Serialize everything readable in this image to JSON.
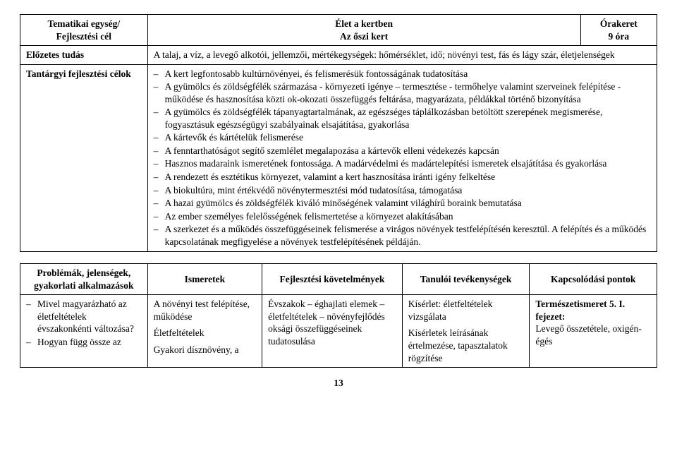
{
  "topTable": {
    "header": {
      "col1_line1": "Tematikai egység/",
      "col1_line2": "Fejlesztési cél",
      "col2_line1": "Élet a kertben",
      "col2_line2": "Az őszi kert",
      "col3_line1": "Órakeret",
      "col3_line2": "9 óra"
    },
    "row2": {
      "label": "Előzetes tudás",
      "content": "A talaj, a víz, a levegő alkotói, jellemzői, mértékegységek: hőmérséklet, idő; növényi test, fás és lágy szár, életjelenségek"
    },
    "row3": {
      "label": "Tantárgyi fejlesztési célok",
      "items": [
        "A kert legfontosabb kultúrnövényei, és felismerésük fontosságának tudatosítása",
        "A gyümölcs és zöldségfélék származása - környezeti igénye – termesztése - termőhelye valamint szerveinek felépítése - működése és hasznosítása közti ok-okozati összefüggés feltárása, magyarázata, példákkal történő bizonyítása",
        "A gyümölcs és zöldségfélék tápanyagtartalmának, az egészséges táplálkozásban betöltött szerepének megismerése, fogyasztásuk egészségügyi szabályainak elsajátítása, gyakorlása",
        "A kártevők és kártételük felismerése",
        "A fenntarthatóságot segítő szemlélet megalapozása a kártevők elleni védekezés kapcsán",
        "Hasznos madaraink ismeretének fontossága. A madárvédelmi és madártelepítési ismeretek elsajátítása és gyakorlása",
        "A rendezett és esztétikus környezet, valamint a kert hasznosítása iránti igény felkeltése",
        "A biokultúra, mint értékvédő növénytermesztési mód tudatosítása, támogatása",
        "A hazai gyümölcs és zöldségfélék kiváló minőségének valamint világhírű boraink bemutatása",
        "Az ember személyes felelősségének felismertetése a környezet alakításában",
        "A szerkezet és a működés összefüggéseinek felismerése a virágos növények testfelépítésén keresztül. A felépítés és a működés kapcsolatának megfigyelése a növények testfelépítésének példáján."
      ]
    }
  },
  "bottomTable": {
    "headers": {
      "c1_line1": "Problémák, jelenségek,",
      "c1_line2": "gyakorlati alkalmazások",
      "c2": "Ismeretek",
      "c3": "Fejlesztési követelmények",
      "c4": "Tanulói tevékenységek",
      "c5": "Kapcsolódási pontok"
    },
    "row": {
      "c1_items": [
        "Mivel magyarázható az életfeltételek évszakonkénti változása?",
        "Hogyan függ össze az"
      ],
      "c2_p1": "A növényi test felépítése, működése",
      "c2_p2": "Életfeltételek",
      "c2_p3": "Gyakori dísznövény, a",
      "c3": "Évszakok – éghajlati elemek – életfeltételek – növényfejlődés oksági összefüggéseinek tudatosulása",
      "c4_p1": "Kísérlet: életfeltételek vizsgálata",
      "c4_p2": "Kísérletek leírásának értelmezése, tapasztalatok rögzítése",
      "c5_p1": "Természetismeret 5. I. fejezet:",
      "c5_p2": "Levegő összetétele, oxigén-égés"
    }
  },
  "pageNumber": "13"
}
